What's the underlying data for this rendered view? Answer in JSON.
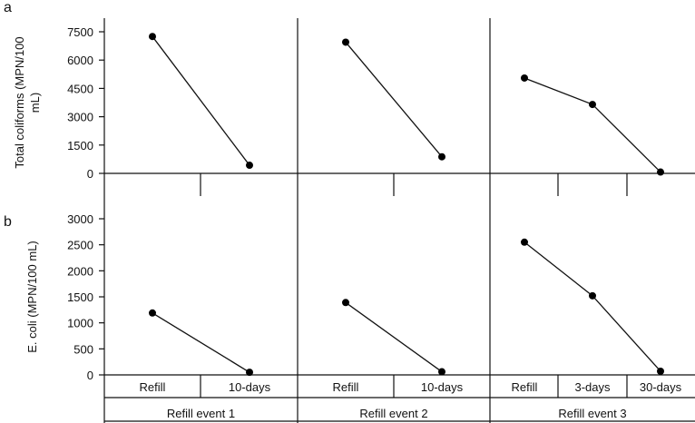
{
  "chart_data": {
    "type": "line",
    "panel_letters": [
      "a",
      "b"
    ],
    "groups": [
      {
        "label": "Refill event 1",
        "categories": [
          "Refill",
          "10-days"
        ]
      },
      {
        "label": "Refill event 2",
        "categories": [
          "Refill",
          "10-days"
        ]
      },
      {
        "label": "Refill event 3",
        "categories": [
          "Refill",
          "3-days",
          "30-days"
        ]
      }
    ],
    "panels": [
      {
        "letter": "a",
        "ylabel_lines": [
          "Total coliforms (MPN/100",
          "mL)"
        ],
        "ylim": [
          0,
          7500
        ],
        "yticks": [
          0,
          1500,
          3000,
          4500,
          6000,
          7500
        ],
        "series": [
          {
            "group": 0,
            "values": [
              7250,
              430
            ]
          },
          {
            "group": 1,
            "values": [
              6950,
              880
            ]
          },
          {
            "group": 2,
            "values": [
              5050,
              3650,
              70
            ]
          }
        ]
      },
      {
        "letter": "b",
        "ylabel_lines": [
          "E. coli (MPN/100 mL)"
        ],
        "ylim": [
          0,
          3000
        ],
        "yticks": [
          0,
          500,
          1000,
          1500,
          2000,
          2500,
          3000
        ],
        "series": [
          {
            "group": 0,
            "values": [
              1190,
              50
            ]
          },
          {
            "group": 1,
            "values": [
              1390,
              60
            ]
          },
          {
            "group": 2,
            "values": [
              2550,
              1520,
              70
            ]
          }
        ]
      }
    ]
  }
}
